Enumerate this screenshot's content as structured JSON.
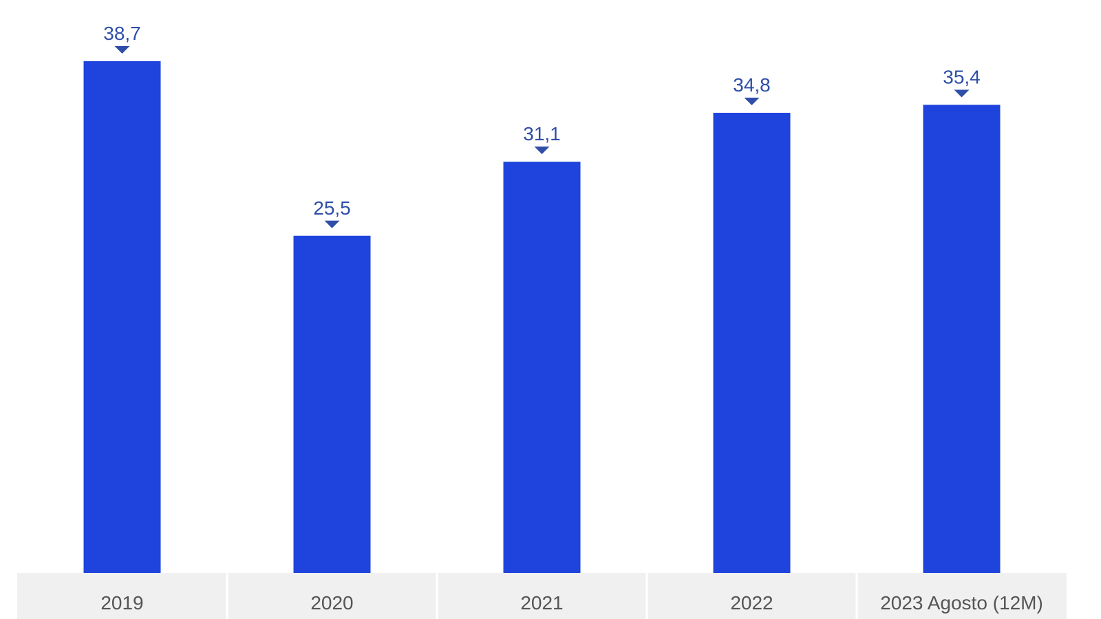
{
  "chart_data": {
    "type": "bar",
    "title": "",
    "xlabel": "",
    "ylabel": "",
    "categories": [
      "2019",
      "2020",
      "2021",
      "2022",
      "2023 Agosto (12M)"
    ],
    "values": [
      38.7,
      25.5,
      31.1,
      34.8,
      35.4
    ],
    "value_labels": [
      "38,7",
      "25,5",
      "31,1",
      "34,8",
      "35,4"
    ],
    "ylim": [
      0,
      40
    ],
    "grid": false,
    "legend": "none",
    "colors": {
      "bar": "#1e44dd",
      "value_label": "#2f4ea8",
      "value_marker": "#2f4ea8",
      "axis_band": "#f0f0f0",
      "axis_band_divider": "#ffffff",
      "category_label": "#555555"
    }
  }
}
